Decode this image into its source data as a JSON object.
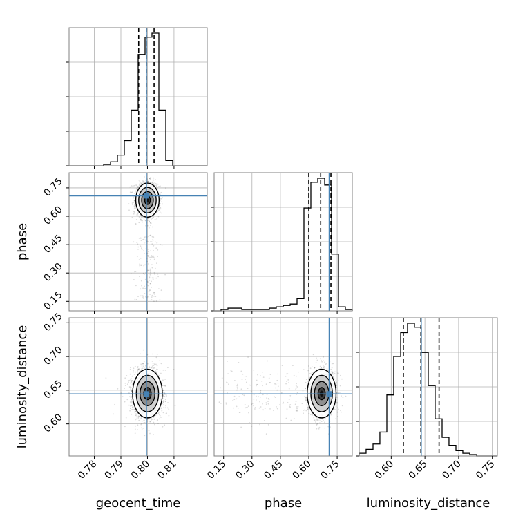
{
  "colors": {
    "truth": "#4682b4",
    "hist": "#000000",
    "grid": "#b0b0b0",
    "frame": "#808080",
    "quantile": "#000000"
  },
  "chart_data": {
    "type": "corner",
    "title": "",
    "parameters": [
      "geocent_time",
      "phase",
      "luminosity_distance"
    ],
    "axis_labels": {
      "geocent_time": "geocent_time",
      "phase": "phase",
      "luminosity_distance": "luminosity_distance"
    },
    "ranges": {
      "geocent_time": [
        0.7705,
        0.8225
      ],
      "phase": [
        0.1,
        0.83
      ],
      "luminosity_distance": [
        0.5525,
        0.7575
      ]
    },
    "truths": {
      "geocent_time": 0.7996,
      "phase": 0.708,
      "luminosity_distance": 0.6445
    },
    "ticks": {
      "geocent_time": [
        "0.78",
        "0.79",
        "0.80",
        "0.81"
      ],
      "phase": [
        "0.15",
        "0.30",
        "0.45",
        "0.60",
        "0.75"
      ],
      "luminosity_distance": [
        "0.60",
        "0.65",
        "0.70",
        "0.75"
      ]
    },
    "grid": true,
    "histograms": {
      "geocent_time": {
        "edges": [
          0.7705,
          0.7731,
          0.7757,
          0.7783,
          0.7809,
          0.7835,
          0.7861,
          0.7887,
          0.7913,
          0.7939,
          0.7965,
          0.7991,
          0.8017,
          0.8043,
          0.8069,
          0.8095,
          0.8121,
          0.8147,
          0.8173,
          0.8199,
          0.8225
        ],
        "counts": [
          0,
          0,
          0,
          0,
          0,
          0.01,
          0.03,
          0.08,
          0.19,
          0.42,
          0.84,
          0.97,
          1.0,
          0.42,
          0.04,
          0,
          0,
          0,
          0,
          0
        ],
        "quantiles": [
          0.7967,
          0.7996,
          0.8025
        ]
      },
      "phase": {
        "edges": [
          0.1,
          0.1365,
          0.173,
          0.2095,
          0.246,
          0.2825,
          0.319,
          0.3555,
          0.392,
          0.4285,
          0.465,
          0.5015,
          0.538,
          0.5745,
          0.611,
          0.6475,
          0.684,
          0.7205,
          0.757,
          0.7935,
          0.83
        ],
        "counts": [
          0,
          0.01,
          0.02,
          0.02,
          0.01,
          0.01,
          0.01,
          0.01,
          0.02,
          0.03,
          0.04,
          0.05,
          0.09,
          0.76,
          0.95,
          0.98,
          0.93,
          0.42,
          0.03,
          0.01
        ],
        "quantiles": [
          0.6,
          0.663,
          0.717
        ]
      },
      "luminosity_distance": {
        "edges": [
          0.5525,
          0.5627,
          0.573,
          0.5832,
          0.5935,
          0.6037,
          0.614,
          0.6242,
          0.6345,
          0.6447,
          0.655,
          0.6652,
          0.6755,
          0.6857,
          0.696,
          0.7062,
          0.7165,
          0.7267,
          0.737,
          0.7472,
          0.7575
        ],
        "counts": [
          0.02,
          0.05,
          0.09,
          0.18,
          0.46,
          0.75,
          0.93,
          1.0,
          0.97,
          0.78,
          0.53,
          0.28,
          0.14,
          0.08,
          0.04,
          0.02,
          0.01,
          0.0,
          0,
          0
        ],
        "quantiles": [
          0.618,
          0.644,
          0.671
        ]
      }
    },
    "scatter_2d": [
      {
        "x": "geocent_time",
        "y": "phase",
        "x_mean": 0.8,
        "x_sd": 0.0022,
        "y_mean": 0.685,
        "y_sd": 0.045,
        "tail_y": [
          0.15,
          0.5
        ],
        "contours_sigma": [
          0.5,
          1.0,
          1.5,
          2.0
        ]
      },
      {
        "x": "geocent_time",
        "y": "luminosity_distance",
        "x_mean": 0.8,
        "x_sd": 0.0028,
        "y_mean": 0.645,
        "y_sd": 0.018,
        "contours_sigma": [
          0.5,
          1.0,
          1.5,
          2.0
        ]
      },
      {
        "x": "phase",
        "y": "luminosity_distance",
        "x_mean": 0.668,
        "x_sd": 0.038,
        "y_mean": 0.645,
        "y_sd": 0.018,
        "tail_x": [
          0.12,
          0.55
        ],
        "contours_sigma": [
          0.5,
          1.0,
          1.5,
          2.0
        ]
      }
    ]
  }
}
